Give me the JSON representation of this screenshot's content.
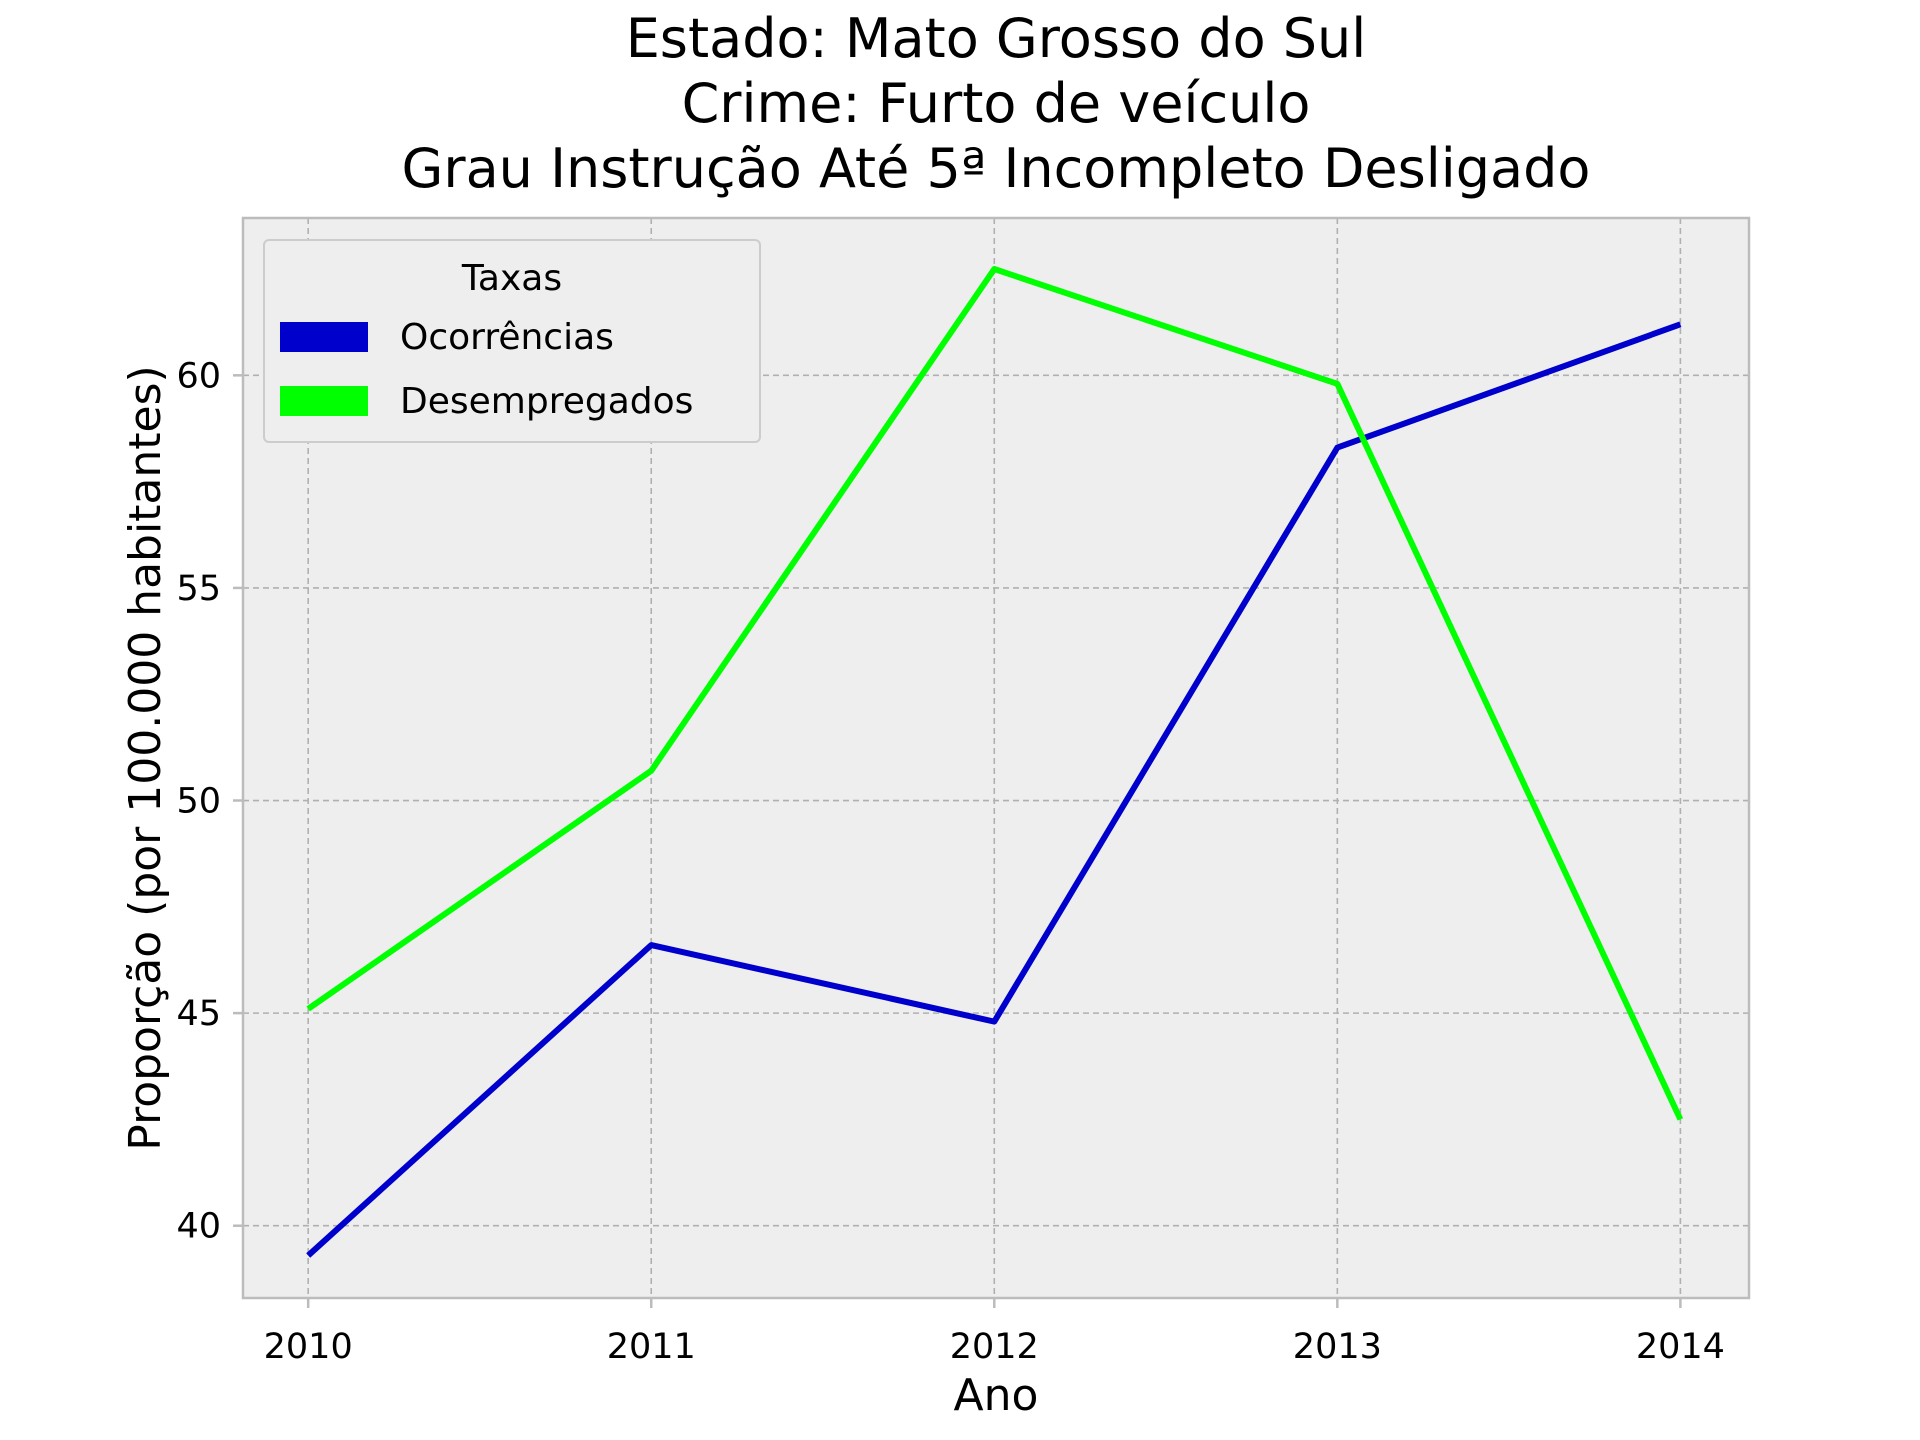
{
  "chart_data": {
    "type": "line",
    "title": [
      "Estado: Mato Grosso do Sul",
      "Crime: Furto de veículo",
      "Grau Instrução  Até 5ª Incompleto   Desligado"
    ],
    "xlabel": "Ano",
    "ylabel": "Proporção (por 100.000 habitantes)",
    "x": [
      2010,
      2011,
      2012,
      2013,
      2014
    ],
    "x_tick_labels": [
      "2010",
      "2011",
      "2012",
      "2013",
      "2014"
    ],
    "y_ticks": [
      40,
      45,
      50,
      55,
      60
    ],
    "y_tick_labels": [
      "40",
      "45",
      "50",
      "55",
      "60"
    ],
    "xlim": [
      2009.81,
      2014.2
    ],
    "ylim": [
      38.3,
      63.7
    ],
    "grid": true,
    "legend": {
      "title": "Taxas",
      "placement": "top-left"
    },
    "series": [
      {
        "name": "Ocorrências",
        "color": "#0000cc",
        "values": [
          39.3,
          46.6,
          44.8,
          58.3,
          61.2
        ]
      },
      {
        "name": "Desempregados",
        "color": "#00ff00",
        "values": [
          45.1,
          50.7,
          62.5,
          59.8,
          42.5
        ]
      }
    ]
  },
  "colors": {
    "plot_background": "#eeeeee",
    "axes_edge": "#bcbcbc",
    "grid": "#b0b0b0"
  }
}
